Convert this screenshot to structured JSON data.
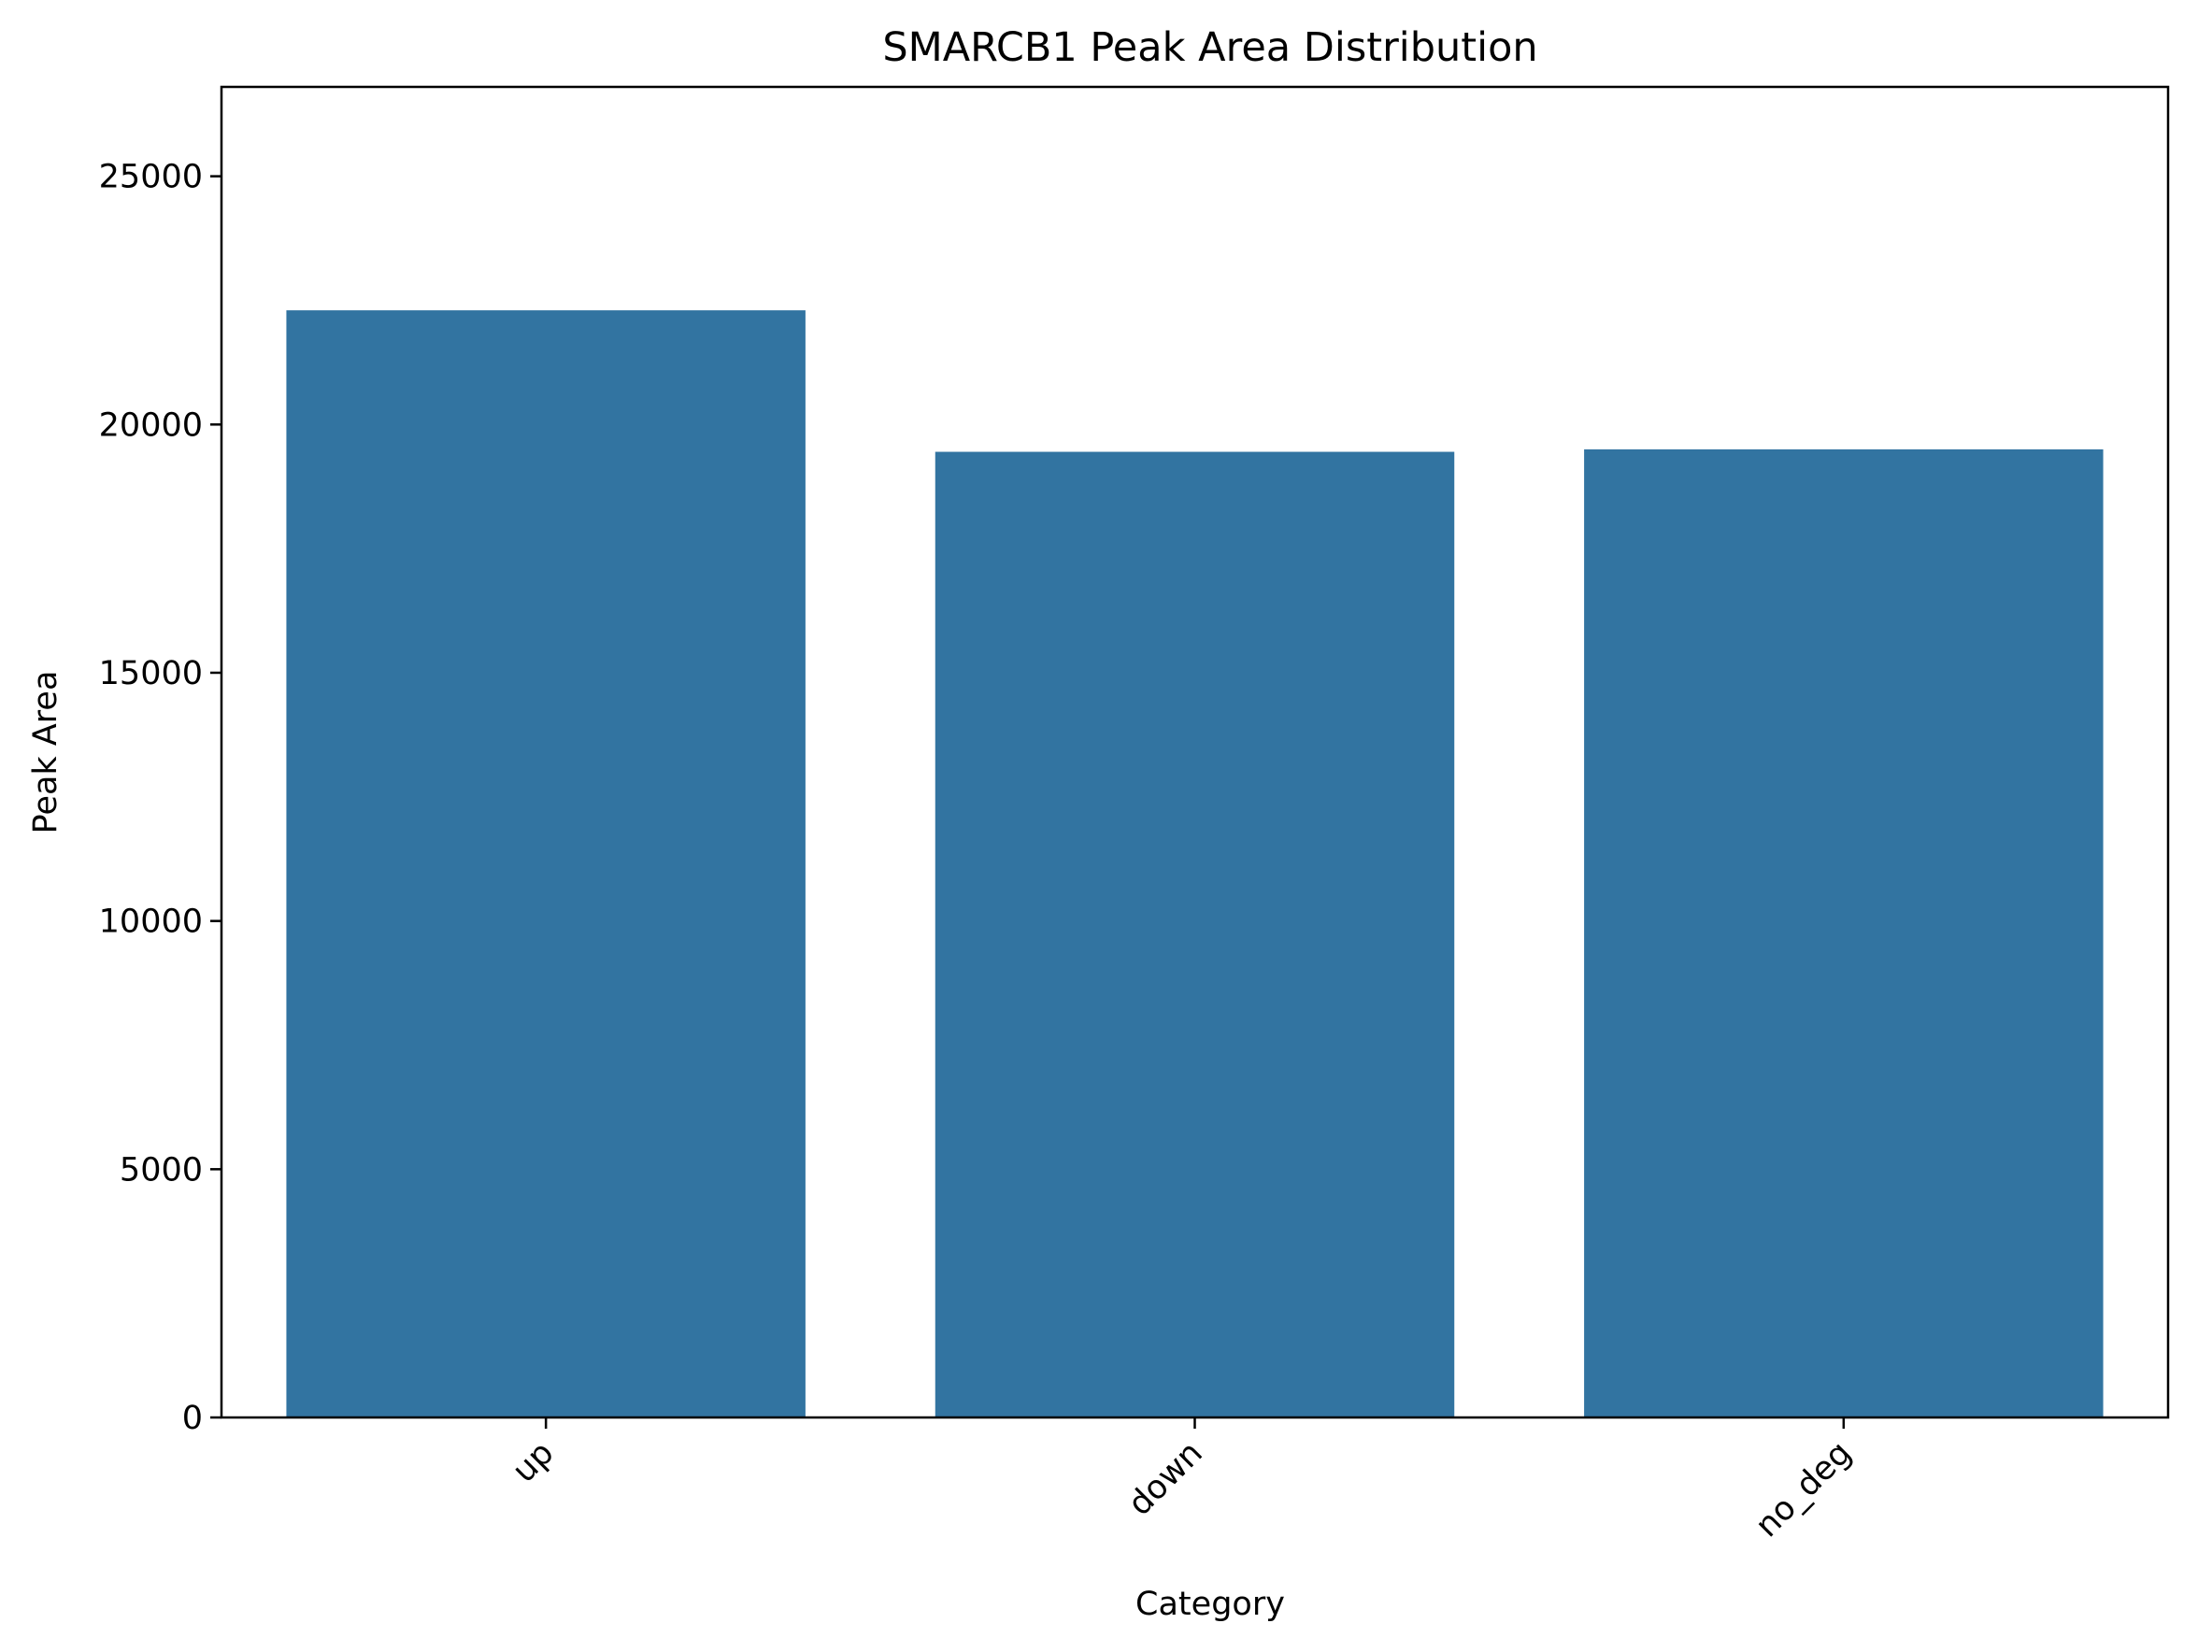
{
  "chart_data": {
    "type": "bar",
    "title": "SMARCB1 Peak Area Distribution",
    "xlabel": "Category",
    "ylabel": "Peak Area",
    "categories": [
      "up",
      "down",
      "no_deg"
    ],
    "values": [
      22300,
      19450,
      19500
    ],
    "ylim": [
      0,
      26800
    ],
    "yticks": [
      0,
      5000,
      10000,
      15000,
      20000,
      25000
    ],
    "xtick_rotation_deg": 45,
    "grid": false,
    "legend": "none",
    "colors": {
      "bar": "#3274a1",
      "axis": "#000000",
      "background": "#ffffff"
    }
  }
}
